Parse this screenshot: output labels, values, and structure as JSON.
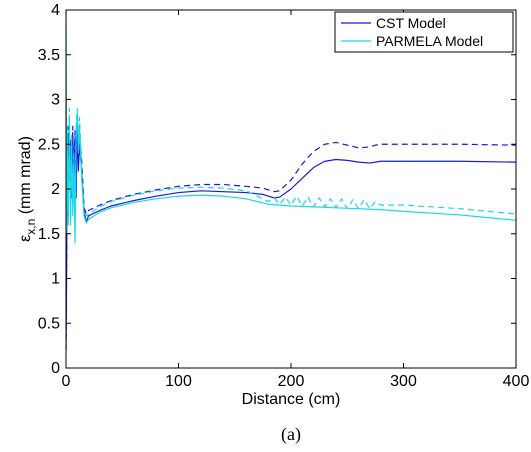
{
  "chart_data": {
    "type": "line",
    "xlabel": "Distance (cm)",
    "ylabel": "ε",
    "ylabel_subscript": "x,n",
    "ylabel_unit": " (mm mrad)",
    "caption": "(a)",
    "xlim": [
      0,
      400
    ],
    "ylim": [
      0,
      4
    ],
    "x_ticks": [
      0,
      100,
      200,
      300,
      400
    ],
    "y_ticks": [
      0,
      0.5,
      1,
      1.5,
      2,
      2.5,
      3,
      3.5,
      4
    ],
    "x_tick_labels": [
      "0",
      "100",
      "200",
      "300",
      "400"
    ],
    "y_tick_labels": [
      "0",
      "0.5",
      "1",
      "1.5",
      "2",
      "2.5",
      "3",
      "3.5",
      "4"
    ],
    "grid": false,
    "legend_position": "top-right",
    "legend": [
      {
        "label": "CST Model",
        "color": "#1a1ad6"
      },
      {
        "label": "PARMELA Model",
        "color": "#1ad8e8"
      }
    ],
    "series": [
      {
        "color": "#1a1ad6",
        "dash": "solid",
        "x": [
          0,
          0.5,
          1,
          2,
          3,
          4,
          5,
          6,
          7,
          8,
          9,
          10,
          11,
          12,
          14,
          16,
          18,
          20,
          30,
          40,
          60,
          80,
          100,
          120,
          140,
          160,
          175,
          180,
          185,
          190,
          200,
          210,
          220,
          230,
          240,
          250,
          260,
          270,
          275,
          280,
          300,
          350,
          400
        ],
        "y": [
          0.2,
          1.0,
          2.2,
          2.6,
          2.1,
          2.45,
          1.9,
          2.6,
          2.0,
          2.55,
          1.9,
          2.7,
          2.2,
          2.5,
          2.2,
          1.75,
          1.63,
          1.7,
          1.76,
          1.81,
          1.87,
          1.92,
          1.96,
          1.98,
          1.97,
          1.96,
          1.94,
          1.92,
          1.9,
          1.91,
          2.0,
          2.12,
          2.24,
          2.31,
          2.33,
          2.32,
          2.3,
          2.29,
          2.3,
          2.31,
          2.31,
          2.31,
          2.3
        ]
      },
      {
        "color": "#1a1ad6",
        "dash": "dashed",
        "x": [
          0,
          0.5,
          1,
          2,
          3,
          4,
          5,
          6,
          7,
          8,
          9,
          10,
          11,
          12,
          14,
          16,
          18,
          20,
          30,
          40,
          60,
          80,
          100,
          120,
          140,
          160,
          175,
          180,
          185,
          190,
          200,
          210,
          220,
          230,
          240,
          250,
          260,
          270,
          275,
          280,
          300,
          350,
          400
        ],
        "y": [
          0.2,
          1.0,
          2.3,
          2.7,
          2.2,
          2.55,
          2.0,
          2.7,
          2.1,
          2.65,
          2.0,
          2.85,
          2.4,
          2.6,
          2.3,
          1.8,
          1.72,
          1.76,
          1.82,
          1.87,
          1.94,
          1.99,
          2.03,
          2.05,
          2.05,
          2.03,
          2.01,
          1.99,
          1.97,
          1.98,
          2.1,
          2.28,
          2.42,
          2.5,
          2.52,
          2.49,
          2.46,
          2.47,
          2.49,
          2.5,
          2.5,
          2.5,
          2.49
        ]
      },
      {
        "color": "#1ad8e8",
        "dash": "solid",
        "x": [
          0,
          0.5,
          1,
          2,
          3,
          4,
          5,
          6,
          7,
          8,
          9,
          10,
          11,
          12,
          14,
          16,
          18,
          20,
          30,
          40,
          60,
          80,
          100,
          120,
          140,
          160,
          180,
          200,
          220,
          240,
          260,
          280,
          300,
          350,
          400
        ],
        "y": [
          4.0,
          1.5,
          2.6,
          1.6,
          2.8,
          1.6,
          2.5,
          1.7,
          2.3,
          1.4,
          2.6,
          2.85,
          2.4,
          2.7,
          2.1,
          1.7,
          1.62,
          1.66,
          1.74,
          1.79,
          1.85,
          1.89,
          1.92,
          1.93,
          1.92,
          1.89,
          1.83,
          1.81,
          1.8,
          1.79,
          1.78,
          1.77,
          1.75,
          1.71,
          1.65
        ]
      },
      {
        "color": "#1ad8e8",
        "dash": "dashed",
        "x": [
          0,
          0.5,
          1,
          2,
          3,
          4,
          5,
          6,
          7,
          8,
          9,
          10,
          11,
          12,
          14,
          16,
          18,
          20,
          30,
          40,
          60,
          80,
          100,
          120,
          140,
          160,
          180,
          185,
          190,
          195,
          200,
          205,
          210,
          215,
          220,
          225,
          230,
          235,
          240,
          245,
          250,
          255,
          260,
          265,
          270,
          275,
          280,
          300,
          350,
          400
        ],
        "y": [
          3.8,
          1.6,
          2.7,
          1.7,
          2.9,
          1.7,
          2.6,
          1.8,
          2.4,
          1.5,
          2.7,
          2.9,
          2.5,
          2.8,
          2.2,
          1.75,
          1.7,
          1.72,
          1.8,
          1.86,
          1.93,
          1.98,
          2.01,
          2.02,
          2.01,
          1.98,
          1.86,
          1.9,
          1.83,
          1.91,
          1.82,
          1.92,
          1.81,
          1.91,
          1.8,
          1.9,
          1.8,
          1.89,
          1.79,
          1.89,
          1.78,
          1.88,
          1.78,
          1.88,
          1.78,
          1.86,
          1.82,
          1.82,
          1.78,
          1.72
        ]
      }
    ]
  }
}
